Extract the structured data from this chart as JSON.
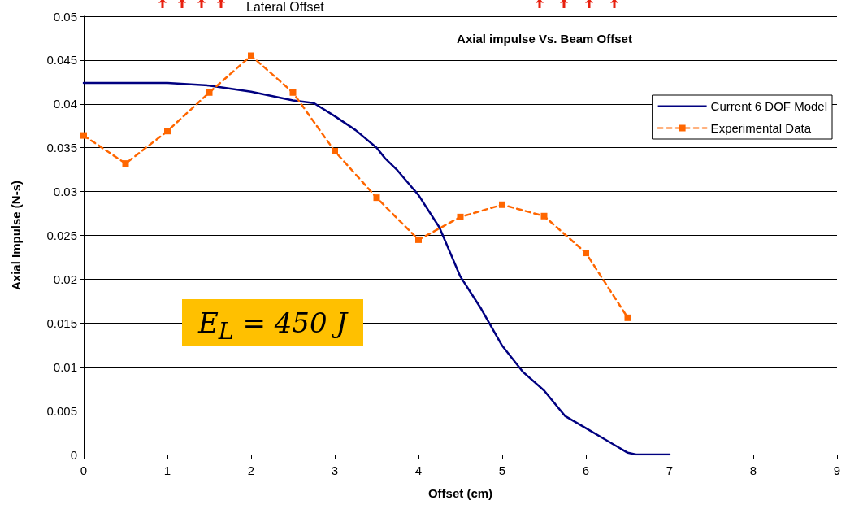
{
  "chart_data": {
    "type": "line",
    "title": "Axial impulse Vs. Beam Offset",
    "xlabel": "Offset (cm)",
    "ylabel": "Axial Impulse (N-s)",
    "xlim": [
      0,
      9
    ],
    "xticks": [
      0,
      1,
      2,
      3,
      4,
      5,
      6,
      7,
      8,
      9
    ],
    "ylim": [
      0,
      0.05
    ],
    "yticks": [
      0,
      0.005,
      0.01,
      0.015,
      0.02,
      0.025,
      0.03,
      0.035,
      0.04,
      0.045,
      0.05
    ],
    "grid": "y",
    "legend": "top right",
    "annotations": [
      "Lateral Offset",
      "E$_{L}$ = 450 J"
    ],
    "series": [
      {
        "name": "Current 6 DOF Model",
        "color": "#000080",
        "line_style": "solid",
        "marker": "none",
        "x": [
          0,
          1,
          1.5,
          2,
          2.5,
          2.75,
          3,
          3.25,
          3.5,
          3.6,
          3.75,
          4,
          4.25,
          4.5,
          4.75,
          5,
          5.25,
          5.5,
          5.75,
          6,
          6.25,
          6.5,
          6.6,
          7
        ],
        "values": [
          0.0424,
          0.0424,
          0.0421,
          0.0414,
          0.0404,
          0.0401,
          0.0386,
          0.037,
          0.035,
          0.0338,
          0.0324,
          0.0296,
          0.0259,
          0.0203,
          0.0166,
          0.0124,
          0.0094,
          0.0073,
          0.0044,
          0.003,
          0.0016,
          0.0002,
          0,
          0
        ]
      },
      {
        "name": "Experimental Data",
        "color": "#ff6600",
        "line_style": "dashed",
        "marker": "square",
        "x": [
          0,
          0.5,
          1,
          1.5,
          2,
          2.5,
          3,
          3.5,
          4,
          4.5,
          5,
          5.5,
          6,
          6.5
        ],
        "values": [
          0.0364,
          0.0332,
          0.0369,
          0.0413,
          0.0455,
          0.0413,
          0.0346,
          0.0293,
          0.0245,
          0.0271,
          0.0285,
          0.0272,
          0.023,
          0.0156
        ]
      }
    ]
  }
}
